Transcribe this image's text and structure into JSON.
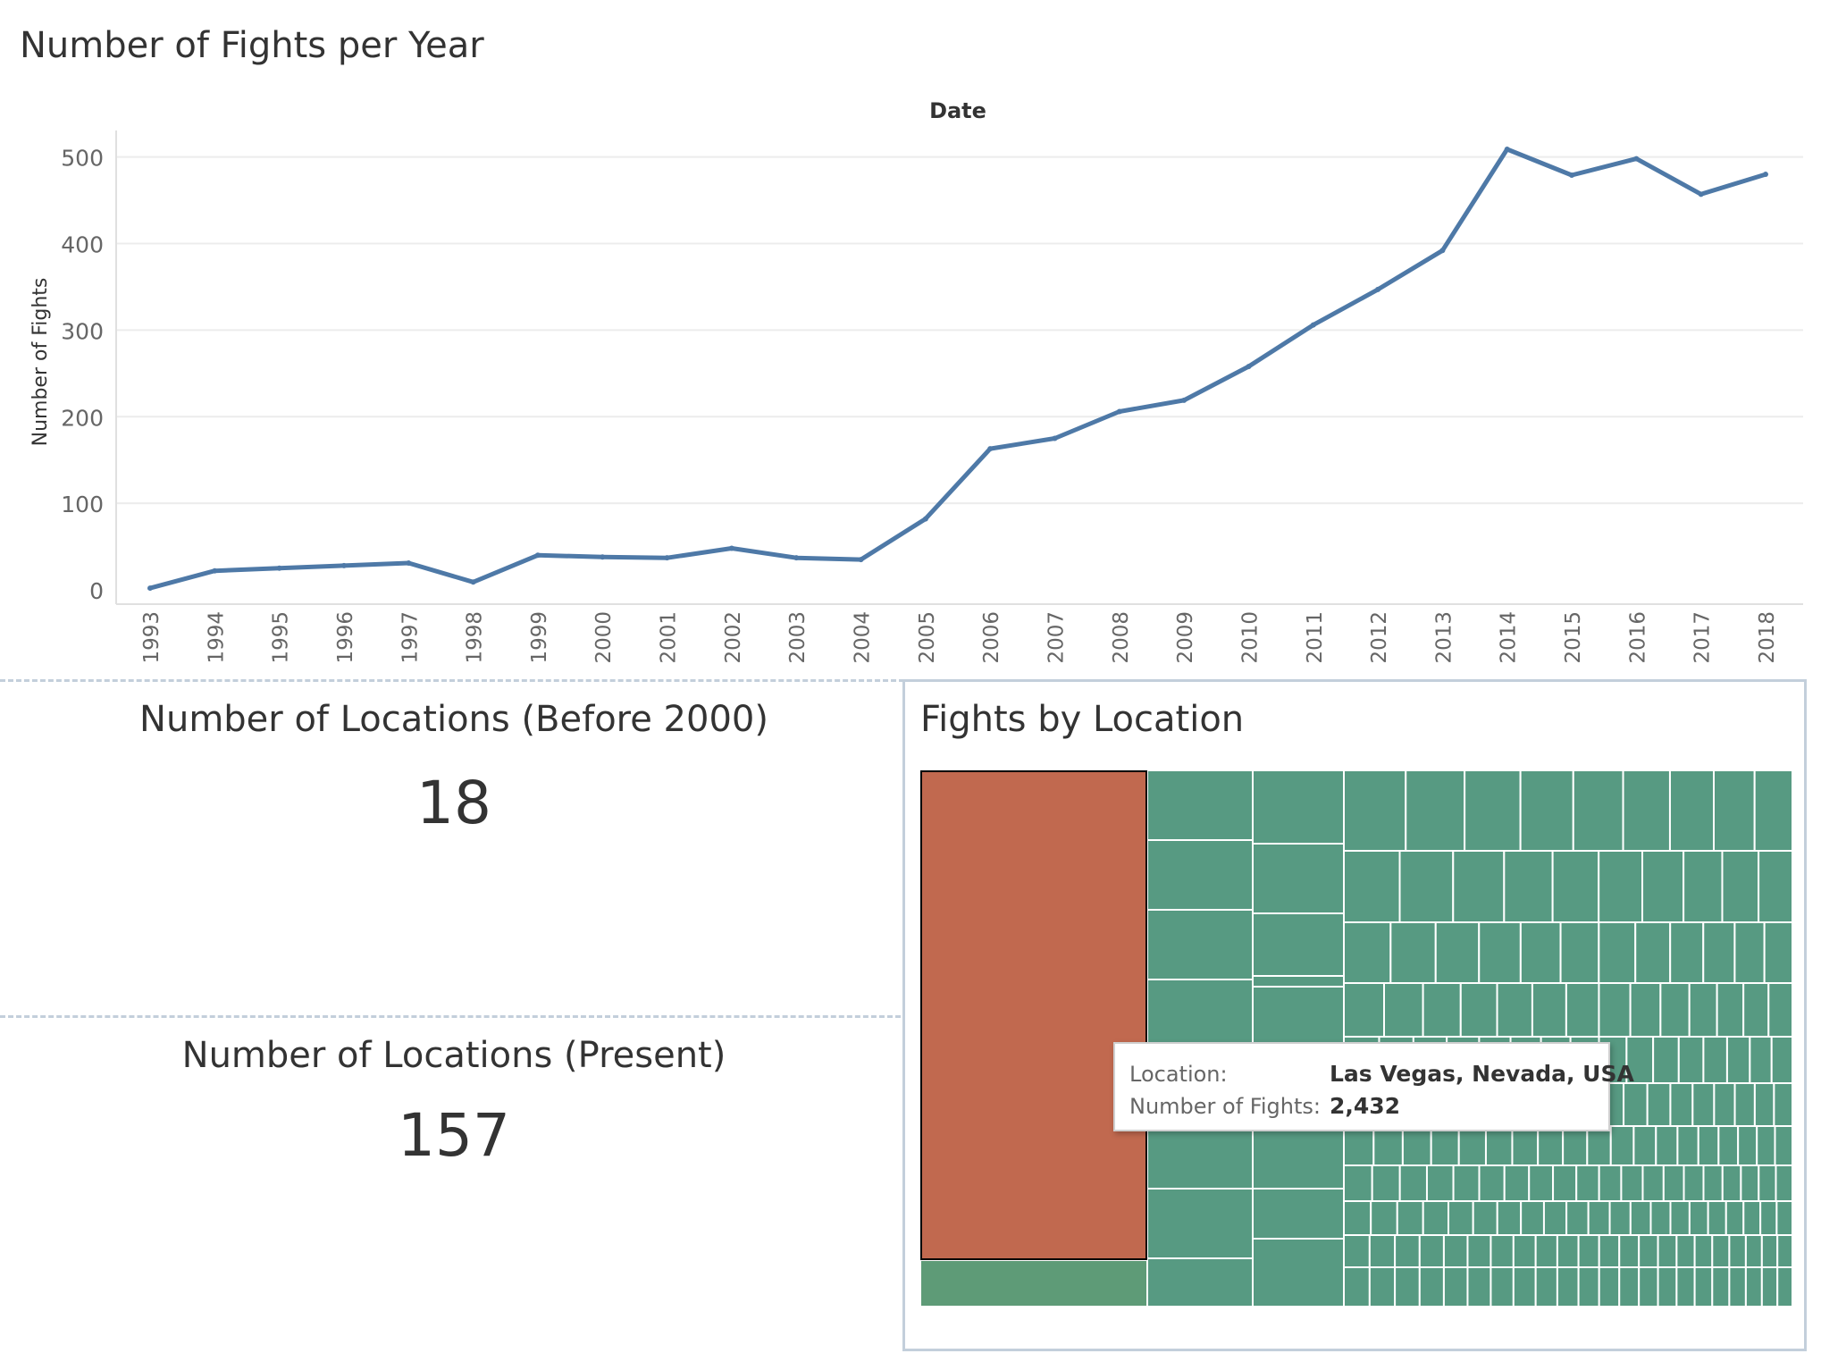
{
  "line_title": "Number of Fights per Year",
  "kpi1": {
    "title": "Number of Locations (Before 2000)",
    "value": "18"
  },
  "kpi2": {
    "title": "Number of Locations (Present)",
    "value": "157"
  },
  "treemap_title": "Fights by Location",
  "tooltip": {
    "location_label": "Location:",
    "location_value": "Las Vegas, Nevada, USA",
    "fights_label": "Number of Fights:",
    "fights_value": "2,432"
  },
  "colors": {
    "line": "#4e79a7",
    "highlight": "#c1694f",
    "cells": "#579a82",
    "cells_alt": "#5e9b77",
    "grid": "#ececec"
  },
  "chart_data": [
    {
      "type": "line",
      "title": "Number of Fights per Year",
      "xlabel": "Date",
      "ylabel": "Number of Fights",
      "x": [
        "1993",
        "1994",
        "1995",
        "1996",
        "1997",
        "1998",
        "1999",
        "2000",
        "2001",
        "2002",
        "2003",
        "2004",
        "2005",
        "2006",
        "2007",
        "2008",
        "2009",
        "2010",
        "2011",
        "2012",
        "2013",
        "2014",
        "2015",
        "2016",
        "2017",
        "2018"
      ],
      "y": [
        2,
        22,
        25,
        28,
        31,
        9,
        40,
        38,
        37,
        48,
        37,
        35,
        82,
        163,
        175,
        206,
        219,
        258,
        306,
        347,
        392,
        509,
        479,
        498,
        457,
        480
      ],
      "yticks": [
        0,
        100,
        200,
        300,
        400,
        500
      ],
      "ylim": [
        0,
        510
      ],
      "grid": true
    },
    {
      "type": "treemap",
      "title": "Fights by Location",
      "series": [
        {
          "name": "Location",
          "values": [
            {
              "label": "Las Vegas, Nevada, USA",
              "value": 2432,
              "highlighted": true
            }
          ]
        }
      ]
    }
  ]
}
